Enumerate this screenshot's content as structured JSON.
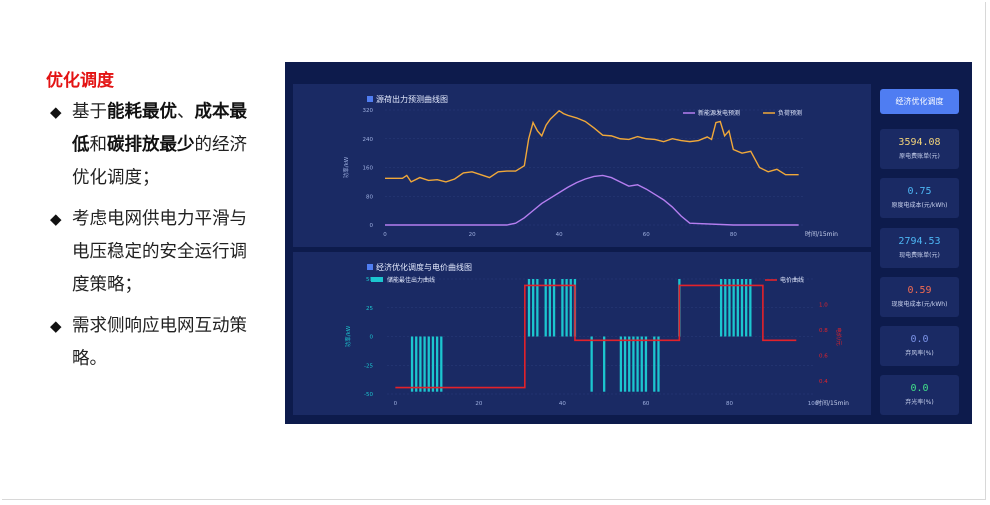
{
  "slide": {
    "title": "优化调度",
    "bullets": [
      {
        "mark": "◆",
        "segments": [
          {
            "t": "基于",
            "b": false
          },
          {
            "t": "能耗最优",
            "b": true
          },
          {
            "t": "、",
            "b": false
          },
          {
            "t": "成本最低",
            "b": true
          },
          {
            "t": "和",
            "b": false
          },
          {
            "t": "碳排放最少",
            "b": true
          },
          {
            "t": "的经济优化调度；",
            "b": false
          }
        ]
      },
      {
        "mark": "◆",
        "segments": [
          {
            "t": "考虑电网供电力平滑与电压稳定的安全运行调度策略；",
            "b": false
          }
        ]
      },
      {
        "mark": "◆",
        "segments": [
          {
            "t": "需求侧响应电网互动策略。",
            "b": false
          }
        ]
      }
    ]
  },
  "dashboard": {
    "optimize_button": "经济优化调度",
    "colors": {
      "dashboard_bg": "#0d1b4c",
      "panel_bg": "#1a2a64",
      "button": "#4f7df2",
      "forecast_renew": "#b57ef0",
      "forecast_load": "#f0a83a",
      "storage_bar": "#1cc6cf",
      "price_line": "#e3222a",
      "card_gold": "#f3d47a",
      "card_blue": "#4db6f4",
      "card_red": "#f26b52",
      "card_teal": "#7b93e8",
      "card_green": "#41e08a"
    },
    "cards": [
      {
        "value": "3594.08",
        "label": "原电费账单(元)",
        "color": "#f3d47a"
      },
      {
        "value": "0.75",
        "label": "原度电成本(元/kWh)",
        "color": "#4db6f4"
      },
      {
        "value": "2794.53",
        "label": "现电费账单(元)",
        "color": "#4db6f4"
      },
      {
        "value": "0.59",
        "label": "现度电成本(元/kWh)",
        "color": "#f26b52"
      },
      {
        "value": "0.0",
        "label": "弃风率(%)",
        "color": "#7b93e8"
      },
      {
        "value": "0.0",
        "label": "弃光率(%)",
        "color": "#41e08a"
      }
    ]
  },
  "chart_data": [
    {
      "type": "line",
      "title": "源荷出力预测曲线图",
      "xlabel": "时间/15min",
      "ylabel": "功率/kW",
      "xlim": [
        0,
        96
      ],
      "ylim": [
        0,
        320
      ],
      "xticks": [
        0,
        20,
        40,
        60,
        80
      ],
      "yticks": [
        0,
        80,
        160,
        240,
        320
      ],
      "legend": "top-right",
      "series": [
        {
          "name": "新能源发电预测",
          "color": "#b57ef0",
          "x": [
            0,
            10,
            20,
            28,
            30,
            32,
            34,
            36,
            38,
            40,
            42,
            44,
            46,
            48,
            50,
            52,
            54,
            56,
            58,
            60,
            62,
            64,
            66,
            68,
            70,
            80,
            95
          ],
          "y": [
            0,
            0,
            0,
            0,
            5,
            20,
            40,
            60,
            75,
            90,
            105,
            118,
            128,
            135,
            138,
            132,
            120,
            108,
            112,
            100,
            85,
            70,
            50,
            25,
            5,
            0,
            0
          ]
        },
        {
          "name": "负荷预测",
          "color": "#f0a83a",
          "x": [
            0,
            4,
            5,
            6,
            8,
            10,
            12,
            14,
            16,
            18,
            20,
            22,
            24,
            26,
            28,
            30,
            32,
            33,
            34,
            35,
            36,
            37,
            38,
            40,
            41,
            42,
            44,
            46,
            48,
            50,
            52,
            54,
            56,
            58,
            60,
            62,
            64,
            66,
            68,
            70,
            72,
            74,
            75,
            76,
            77,
            78,
            79,
            80,
            82,
            84,
            86,
            88,
            90,
            92,
            95
          ],
          "y": [
            130,
            130,
            138,
            120,
            132,
            124,
            126,
            120,
            128,
            145,
            148,
            140,
            132,
            148,
            150,
            150,
            165,
            240,
            285,
            262,
            248,
            278,
            295,
            318,
            310,
            305,
            298,
            288,
            270,
            250,
            248,
            240,
            238,
            246,
            240,
            238,
            232,
            240,
            235,
            232,
            235,
            245,
            238,
            285,
            288,
            248,
            262,
            210,
            200,
            205,
            160,
            148,
            155,
            140,
            140
          ]
        }
      ]
    },
    {
      "type": "bar",
      "title": "经济优化调度与电价曲线图",
      "xlabel": "时间/15min",
      "ylabel": "功率/kW",
      "y2label": "电价/元",
      "xlim": [
        -2,
        100
      ],
      "ylim": [
        -50,
        50
      ],
      "xticks": [
        0,
        20,
        40,
        60,
        80,
        100
      ],
      "yticks": [
        -50,
        -25,
        0,
        25,
        50
      ],
      "y2lim": [
        0.3,
        1.2
      ],
      "y2ticks": [
        0.4,
        0.6,
        0.8,
        1.0
      ],
      "legend": "top-left and top-right",
      "series": [
        {
          "name": "储能最佳出力曲线",
          "color": "#1cc6cf",
          "type": "bar",
          "x": [
            4,
            5,
            6,
            7,
            8,
            9,
            10,
            11,
            32,
            33,
            34,
            36,
            37,
            38,
            40,
            41,
            42,
            43,
            47,
            50,
            54,
            55,
            56,
            57,
            58,
            59,
            60,
            62,
            63,
            68,
            78,
            79,
            80,
            81,
            82,
            83,
            84,
            85
          ],
          "y": [
            -48,
            -48,
            -48,
            -48,
            -48,
            -48,
            -48,
            -48,
            50,
            50,
            50,
            50,
            50,
            50,
            50,
            50,
            50,
            50,
            -48,
            -48,
            -48,
            -48,
            -48,
            -48,
            -48,
            -48,
            -48,
            -48,
            -48,
            50,
            50,
            50,
            50,
            50,
            50,
            50,
            50,
            50
          ]
        },
        {
          "name": "电价曲线",
          "color": "#e3222a",
          "type": "step",
          "x": [
            0,
            31,
            31,
            43,
            43,
            68,
            68,
            88,
            88,
            96
          ],
          "y": [
            0.35,
            0.35,
            1.15,
            1.15,
            0.72,
            0.72,
            1.15,
            1.15,
            0.72,
            0.72
          ]
        }
      ]
    }
  ]
}
